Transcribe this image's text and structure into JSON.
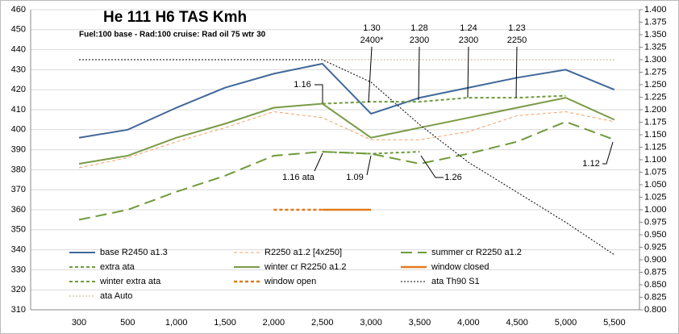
{
  "chart_data": {
    "type": "line",
    "title": "He 111 H6  TAS Kmh",
    "subtitle": "Fuel:100   base - Rad:100    cruise: Rad oil 75 wtr 30",
    "categories": [
      "300",
      "500",
      "1,000",
      "1,500",
      "2,000",
      "2,500",
      "3,000",
      "3,500",
      "4,000",
      "4,500",
      "5,000",
      "5,500"
    ],
    "ylim": [
      310,
      460
    ],
    "yticks": [
      310,
      320,
      330,
      340,
      350,
      360,
      370,
      380,
      390,
      400,
      410,
      420,
      430,
      440,
      450,
      460
    ],
    "y2lim": [
      0.8,
      1.4
    ],
    "y2ticks": [
      {
        "value": 0.8,
        "label": "0.800"
      },
      {
        "value": 0.825,
        "label": "0.825"
      },
      {
        "value": 0.85,
        "label": "0.850"
      },
      {
        "value": 0.875,
        "label": "0.875"
      },
      {
        "value": 0.9,
        "label": "0.900"
      },
      {
        "value": 0.925,
        "label": "0.925"
      },
      {
        "value": 0.95,
        "label": "0.950"
      },
      {
        "value": 0.975,
        "label": "0.975"
      },
      {
        "value": 1.0,
        "label": "1.000"
      },
      {
        "value": 1.025,
        "label": "1.025"
      },
      {
        "value": 1.05,
        "label": "1.050"
      },
      {
        "value": 1.075,
        "label": "1.075"
      },
      {
        "value": 1.1,
        "label": "1.100"
      },
      {
        "value": 1.125,
        "label": "1.125"
      },
      {
        "value": 1.15,
        "label": "1.150"
      },
      {
        "value": 1.175,
        "label": "1.175"
      },
      {
        "value": 1.2,
        "label": "1.200"
      },
      {
        "value": 1.225,
        "label": "1.225"
      },
      {
        "value": 1.25,
        "label": "1.250"
      },
      {
        "value": 1.275,
        "label": "1.275"
      },
      {
        "value": 1.3,
        "label": "1.300"
      },
      {
        "value": 1.325,
        "label": "1.325"
      },
      {
        "value": 1.35,
        "label": "1.350"
      },
      {
        "value": 1.375,
        "label": "1.375"
      },
      {
        "value": 1.4,
        "label": "1.400"
      }
    ],
    "grid": true,
    "series": [
      {
        "name": "base R2450 a1.3",
        "color": "#41689a",
        "style": "solid",
        "width": 2,
        "values": [
          396,
          400,
          411,
          421,
          428,
          433,
          408,
          416,
          421,
          426,
          430,
          420
        ]
      },
      {
        "name": "R2250 a1.2 [4x250]",
        "color": "#f4a066",
        "style": "dashed",
        "width": 1,
        "values": [
          381,
          386,
          394,
          401,
          409,
          406,
          395,
          395,
          399,
          407,
          409,
          404
        ]
      },
      {
        "name": "summer cr R2250 a1.2",
        "color": "#6f9a3c",
        "style": "longdash",
        "width": 2,
        "values": [
          355,
          360,
          369,
          377,
          387,
          389,
          388,
          383,
          388,
          394,
          404,
          395
        ]
      },
      {
        "name": "extra ata",
        "color": "#6f9a3c",
        "style": "dashed",
        "width": 2,
        "values": [
          null,
          null,
          null,
          null,
          null,
          413,
          414,
          414,
          416,
          416,
          417,
          null
        ]
      },
      {
        "name": "winter cr R2250 a1.2",
        "color": "#7a9a46",
        "style": "solid",
        "width": 2,
        "values": [
          383,
          387,
          396,
          403,
          411,
          413,
          396,
          401,
          406,
          411,
          416,
          405
        ]
      },
      {
        "name": "window closed",
        "color": "#e07b1c",
        "style": "solid",
        "width": 2.5,
        "values": [
          null,
          null,
          null,
          null,
          null,
          360,
          360,
          null,
          null,
          null,
          null,
          null
        ]
      },
      {
        "name": "winter extra ata",
        "color": "#6f9a3c",
        "style": "dashed",
        "width": 2,
        "values": [
          null,
          null,
          null,
          null,
          null,
          389,
          388,
          389,
          null,
          null,
          null,
          null
        ]
      },
      {
        "name": "window open",
        "color": "#e07b1c",
        "style": "dashed",
        "width": 2.5,
        "values": [
          null,
          null,
          null,
          null,
          360,
          360,
          null,
          null,
          null,
          null,
          null,
          null
        ]
      },
      {
        "name": "ata Th90 S1",
        "color": "#000000",
        "style": "dotted",
        "width": 1,
        "axis": "y2",
        "values": [
          1.3,
          1.3,
          1.3,
          1.3,
          1.3,
          1.3,
          1.255,
          1.17,
          1.095,
          1.035,
          0.975,
          0.91
        ]
      },
      {
        "name": "ata Auto",
        "color": "#c4b08a",
        "style": "dotted",
        "width": 1,
        "axis": "y2",
        "values": [
          null,
          null,
          null,
          null,
          null,
          1.3,
          1.3,
          1.3,
          1.3,
          1.3,
          1.3,
          1.3
        ]
      }
    ],
    "annotations": [
      [
        "1.30",
        "2400*"
      ],
      [
        "1.28",
        "2300"
      ],
      [
        "1.24",
        "2300"
      ],
      [
        "1.23",
        "2250"
      ],
      [
        "1.16"
      ],
      [
        "1.16 ata"
      ],
      [
        "1.09"
      ],
      [
        "1.26"
      ],
      [
        "1.12"
      ]
    ]
  }
}
